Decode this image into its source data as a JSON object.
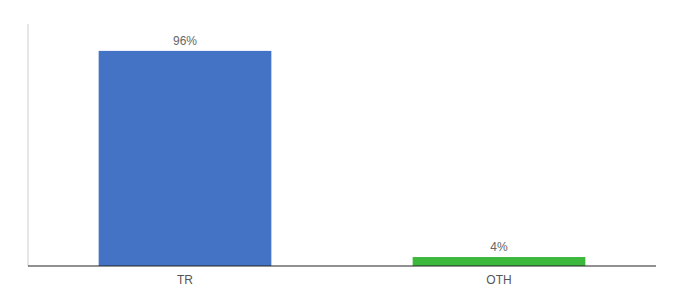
{
  "chart_data": {
    "type": "bar",
    "categories": [
      "TR",
      "OTH"
    ],
    "values": [
      96,
      4
    ],
    "value_labels": [
      "96%",
      "4%"
    ],
    "colors": [
      "#4472C4",
      "#3CB83C"
    ],
    "ylim": [
      0,
      108
    ],
    "grid": false,
    "data_labels": true,
    "tick_labels": "x"
  }
}
